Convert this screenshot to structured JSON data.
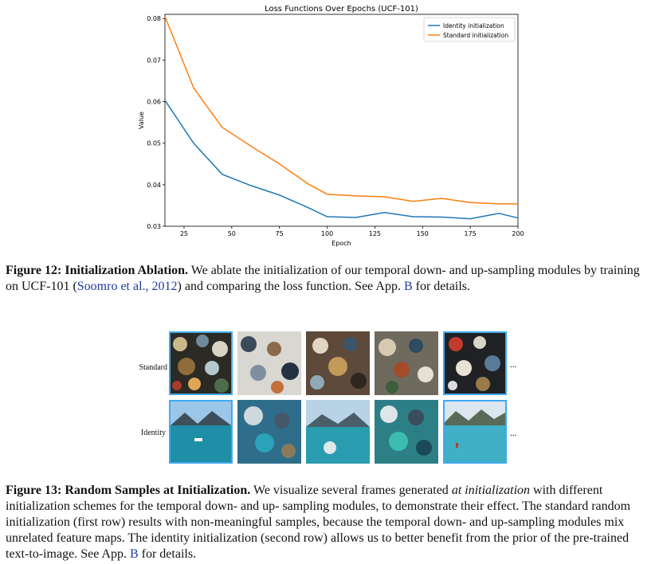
{
  "chart_data": {
    "type": "line",
    "title": "Loss Functions Over Epochs (UCF-101)",
    "xlabel": "Epoch",
    "ylabel": "Value",
    "xlim": [
      15,
      200
    ],
    "ylim": [
      0.03,
      0.081
    ],
    "xticks": [
      25,
      50,
      75,
      100,
      125,
      150,
      175,
      200
    ],
    "yticks": [
      0.03,
      0.04,
      0.05,
      0.06,
      0.07,
      0.08
    ],
    "ytick_labels": [
      "0.03",
      "0.04",
      "0.05",
      "0.06",
      "0.07",
      "0.08"
    ],
    "grid": false,
    "legend_position": "top-right",
    "series": [
      {
        "name": "Identity initialization",
        "color": "#1f77b4",
        "x": [
          15,
          30,
          45,
          60,
          75,
          90,
          100,
          115,
          130,
          145,
          160,
          175,
          190,
          200
        ],
        "y": [
          0.0603,
          0.05,
          0.0425,
          0.0398,
          0.0375,
          0.0345,
          0.0323,
          0.0321,
          0.0333,
          0.0323,
          0.0322,
          0.0318,
          0.0331,
          0.032
        ]
      },
      {
        "name": "Standard initialization",
        "color": "#ff7f0e",
        "x": [
          15,
          30,
          45,
          60,
          75,
          90,
          100,
          115,
          130,
          145,
          160,
          175,
          190,
          200
        ],
        "y": [
          0.0805,
          0.0633,
          0.0538,
          0.0493,
          0.045,
          0.0402,
          0.0377,
          0.0373,
          0.0371,
          0.036,
          0.0367,
          0.0357,
          0.0354,
          0.0354
        ]
      }
    ]
  },
  "fig12_caption": {
    "label": "Figure 12:",
    "bold": "Initialization Ablation.",
    "text1": "We ablate the initialization of our temporal down- and up-sampling modules by training on UCF-101 (",
    "cite": "Soomro et al., 2012",
    "text2": ") and comparing the loss function. See App.",
    "appref": "B",
    "text3": "for details."
  },
  "fig13": {
    "row_labels": [
      "Standard",
      "Identity"
    ],
    "ellipsis": "...",
    "colors": {
      "frame_border": "#3fa9f5"
    }
  },
  "fig13_caption": {
    "label": "Figure 13:",
    "bold": "Random Samples at Initialization.",
    "text1": "We visualize several frames generated",
    "italic": "at initialization",
    "text2": "with different initialization schemes for the temporal down- and up- sampling modules, to demonstrate their effect. The standard random initialization (first row) results with non-meaningful samples, because the temporal down- and up-sampling modules mix unrelated feature maps. The identity initialization (second row) allows us to better benefit from the prior of the pre-trained text-to-image. See App.",
    "appref": "B",
    "text3": "for details."
  }
}
